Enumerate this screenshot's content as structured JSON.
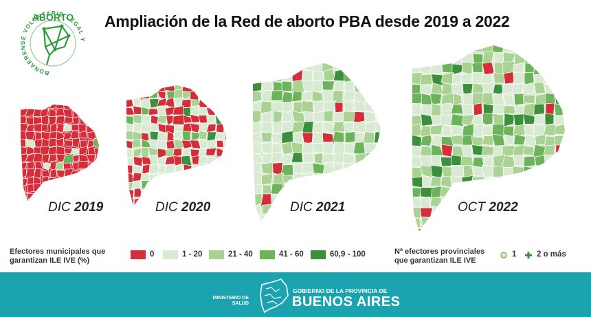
{
  "title": "Ampliación de la Red de aborto PBA desde 2019 a 2022",
  "logo": {
    "top_text": "ABORTO",
    "ring_text": "BONAERENSE   VOLUNTARIO LEGAL Y",
    "color": "#2e9a3c"
  },
  "maps": [
    {
      "prefix": "DIC",
      "year": "2019"
    },
    {
      "prefix": "DIC",
      "year": "2020"
    },
    {
      "prefix": "DIC",
      "year": "2021"
    },
    {
      "prefix": "OCT",
      "year": "2022"
    }
  ],
  "legend": {
    "municipal_title_line1": "Efectores municipales que",
    "municipal_title_line2": "garantizan ILE IVE (%)",
    "categories": [
      {
        "label": "0",
        "color": "#d42e3a"
      },
      {
        "label": "1 - 20",
        "color": "#d9ead2"
      },
      {
        "label": "21 - 40",
        "color": "#a9d293"
      },
      {
        "label": "41 - 60",
        "color": "#6cb35b"
      },
      {
        "label": "60,9 - 100",
        "color": "#3c8f3c"
      }
    ],
    "provincial_title_line1": "Nº efectores provinciales",
    "provincial_title_line2": "que garantizan ILE IVE",
    "provincial_items": [
      {
        "symbol": "circle",
        "label": "1"
      },
      {
        "symbol": "plus",
        "label": "2 o más"
      }
    ]
  },
  "footer": {
    "ministry_line1": "MINISTERIO DE",
    "ministry_line2": "SALUD",
    "gov_small": "GOBIERNO DE LA PROVINCIA DE",
    "gov_big": "BUENOS AIRES",
    "color": "#1ba3b0"
  }
}
